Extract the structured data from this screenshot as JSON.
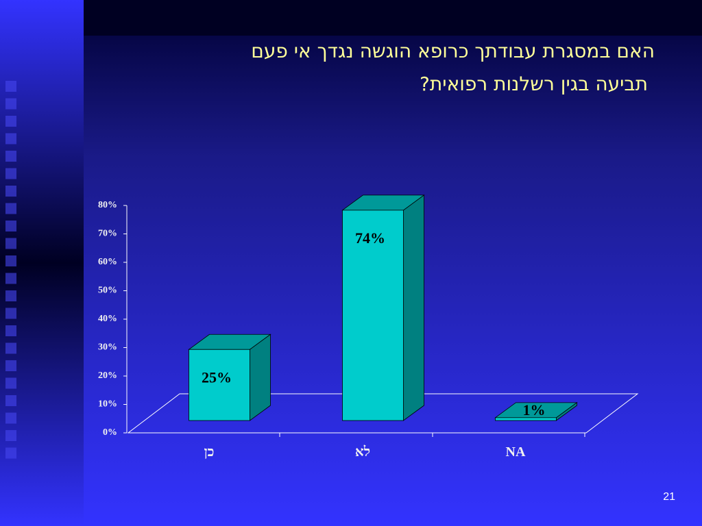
{
  "chart_data": {
    "type": "bar3d",
    "title": [
      "האם במסגרת עבודתך כרופא הוגשה נגדך אי פעם",
      "תביעה בגין רשלנות רפואית?"
    ],
    "categories": [
      "כן",
      "לא",
      "NA"
    ],
    "values": [
      25,
      74,
      1
    ],
    "value_labels": [
      "25%",
      "74%",
      "1%"
    ],
    "color": "#00cccc",
    "ylim": [
      0,
      80
    ],
    "yticks": [
      {
        "value": 0,
        "label": "0%"
      },
      {
        "value": 10,
        "label": "10%"
      },
      {
        "value": 20,
        "label": "20%"
      },
      {
        "value": 30,
        "label": "30%"
      },
      {
        "value": 40,
        "label": "40%"
      },
      {
        "value": 50,
        "label": "50%"
      },
      {
        "value": 60,
        "label": "60%"
      },
      {
        "value": 70,
        "label": "70%"
      },
      {
        "value": 80,
        "label": "80%"
      }
    ]
  },
  "slide_number": "21"
}
